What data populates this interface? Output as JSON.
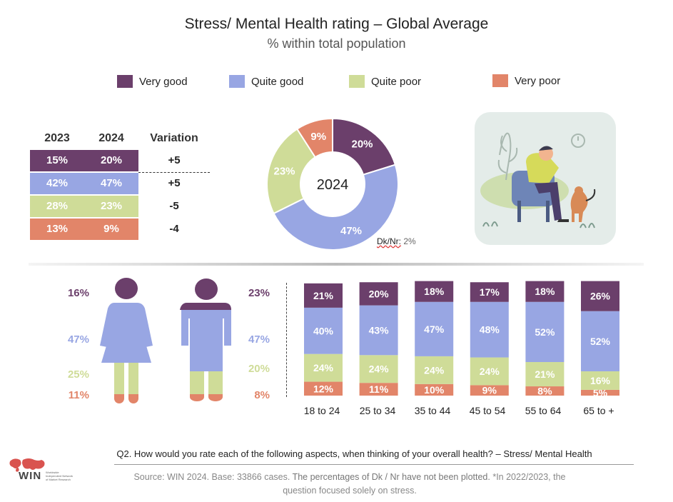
{
  "title": "Stress/ Mental Health rating – Global Average",
  "subtitle": "% within total population",
  "colors": {
    "very_good": "#6b3f6b",
    "quite_good": "#98a6e3",
    "quite_poor": "#cfdc98",
    "very_poor": "#e28569"
  },
  "legend": [
    {
      "label": "Very good",
      "key": "very_good"
    },
    {
      "label": "Quite good",
      "key": "quite_good"
    },
    {
      "label": "Quite poor",
      "key": "quite_poor"
    },
    {
      "label": "Very poor",
      "key": "very_poor"
    }
  ],
  "comparison_table": {
    "headers": [
      "2023",
      "2024",
      "Variation"
    ],
    "rows": [
      {
        "key": "very_good",
        "v2023": "15%",
        "v2024": "20%",
        "variation": "+5"
      },
      {
        "key": "quite_good",
        "v2023": "42%",
        "v2024": "47%",
        "variation": "+5"
      },
      {
        "key": "quite_poor",
        "v2023": "28%",
        "v2024": "23%",
        "variation": "-5"
      },
      {
        "key": "very_poor",
        "v2023": "13%",
        "v2024": "9%",
        "variation": "-4"
      }
    ]
  },
  "gender": {
    "female": [
      "16%",
      "47%",
      "25%",
      "11%"
    ],
    "male": [
      "23%",
      "47%",
      "20%",
      "8%"
    ]
  },
  "dk_nr_prefix": "Dk/Nr:",
  "dk_nr_value": "2%",
  "question": "Q2. How would you rate each of the following aspects, when thinking of your overall health? – Stress/ Mental Health",
  "source_line1_a": "Source: WIN 2024. Base: 33866 cases. ",
  "source_line1_b": "The percentages of Dk / Nr have not been plotted.",
  "source_line1_c": " *In 2022/2023, the",
  "source_line2": "question focused solely on stress.",
  "logo_text": "WIN",
  "logo_subtext": [
    "Worldwide",
    "Independent Network",
    "of Market Research"
  ],
  "chart_data": [
    {
      "type": "pie",
      "title": "2024",
      "categories": [
        "Very good",
        "Quite good",
        "Quite poor",
        "Very poor"
      ],
      "values": [
        20,
        47,
        23,
        9
      ],
      "labels": [
        "20%",
        "47%",
        "23%",
        "9%"
      ],
      "note": "Dk/Nr: 2%"
    },
    {
      "type": "bar",
      "stacked": true,
      "categories": [
        "18 to 24",
        "25 to 34",
        "35 to 44",
        "45 to 54",
        "55 to 64",
        "65 to +"
      ],
      "series": [
        {
          "name": "Very good",
          "values": [
            21,
            20,
            18,
            17,
            18,
            26
          ]
        },
        {
          "name": "Quite good",
          "values": [
            40,
            43,
            47,
            48,
            52,
            52
          ]
        },
        {
          "name": "Quite poor",
          "values": [
            24,
            24,
            24,
            24,
            21,
            16
          ]
        },
        {
          "name": "Very poor",
          "values": [
            12,
            11,
            10,
            9,
            8,
            5
          ]
        }
      ]
    }
  ]
}
